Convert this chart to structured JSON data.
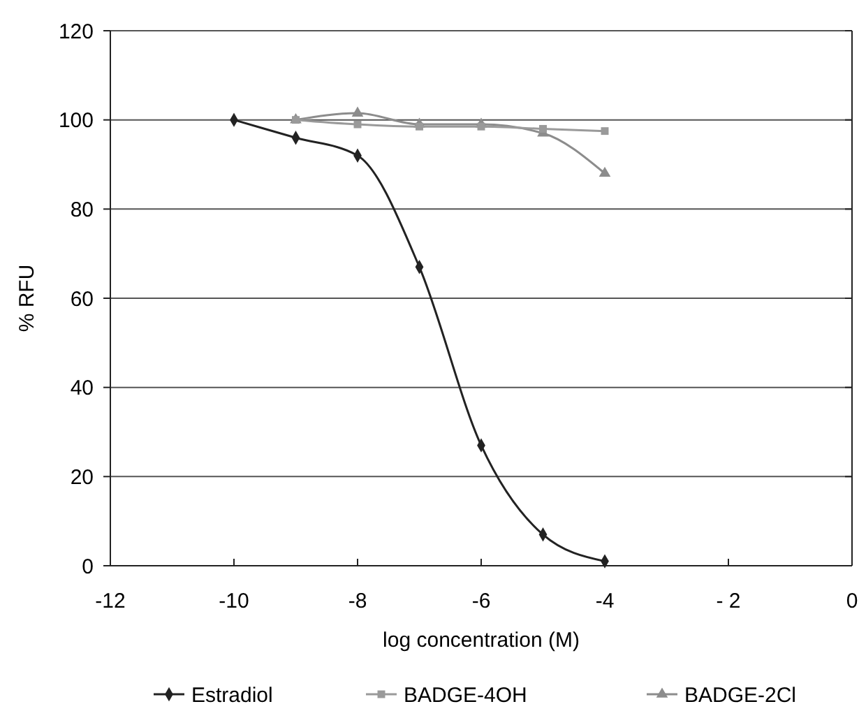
{
  "chart_data": {
    "type": "line",
    "xlabel": "log concentration (M)",
    "ylabel": "% RFU",
    "xlim": [
      -12,
      0
    ],
    "xticks": [
      -12,
      -10,
      -8,
      -6,
      -4,
      {
        "value": -2,
        "label": "- 2"
      },
      0
    ],
    "ylim": [
      0,
      120
    ],
    "yticks": [
      0,
      20,
      40,
      60,
      80,
      100,
      120
    ],
    "grid": "y",
    "legend": "bottom",
    "line_style": "solid",
    "series": [
      {
        "name": "Estradiol",
        "color": "#222222",
        "marker": "diamond",
        "x": [
          -10,
          -9,
          -8,
          -7,
          -6,
          -5,
          -4
        ],
        "values": [
          100,
          96,
          92,
          67,
          27,
          7,
          1
        ]
      },
      {
        "name": "BADGE-4OH",
        "color": "#9a9a9a",
        "marker": "square",
        "x": [
          -9,
          -8,
          -7,
          -6,
          -5,
          -4
        ],
        "values": [
          100,
          99,
          98.5,
          98.5,
          98,
          97.5
        ]
      },
      {
        "name": "BADGE-2Cl",
        "color": "#8c8c8c",
        "marker": "triangle",
        "x": [
          -9,
          -8,
          -7,
          -6,
          -5,
          -4
        ],
        "values": [
          100,
          101.5,
          99,
          99,
          97,
          88
        ]
      }
    ]
  }
}
